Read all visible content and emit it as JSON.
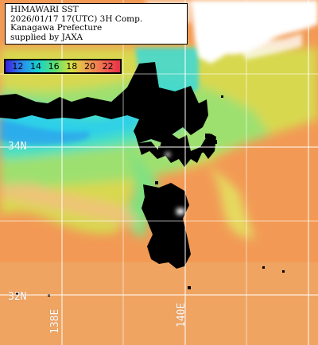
{
  "info": {
    "line1": "HIMAWARI SST",
    "line2": "2026/01/17 17(UTC) 3H Comp.",
    "line3": "Kanagawa Prefecture",
    "line4": "supplied by JAXA"
  },
  "colorbar": {
    "labels": [
      "12",
      "14",
      "16",
      "18",
      "20",
      "22"
    ],
    "gradient": [
      "#3a1fd8",
      "#2a8cf0",
      "#18d2d0",
      "#5ae070",
      "#d8e040",
      "#f0a050",
      "#f06a50",
      "#e83048"
    ]
  },
  "grid": {
    "lat_labels": [
      "34N",
      "32N"
    ],
    "lon_labels": [
      "138E",
      "140E"
    ]
  },
  "colors": {
    "land": "#000000",
    "warm_water": "#f29a55",
    "cool_water": "#2fd8e0",
    "grid_line": "#ffffff"
  }
}
